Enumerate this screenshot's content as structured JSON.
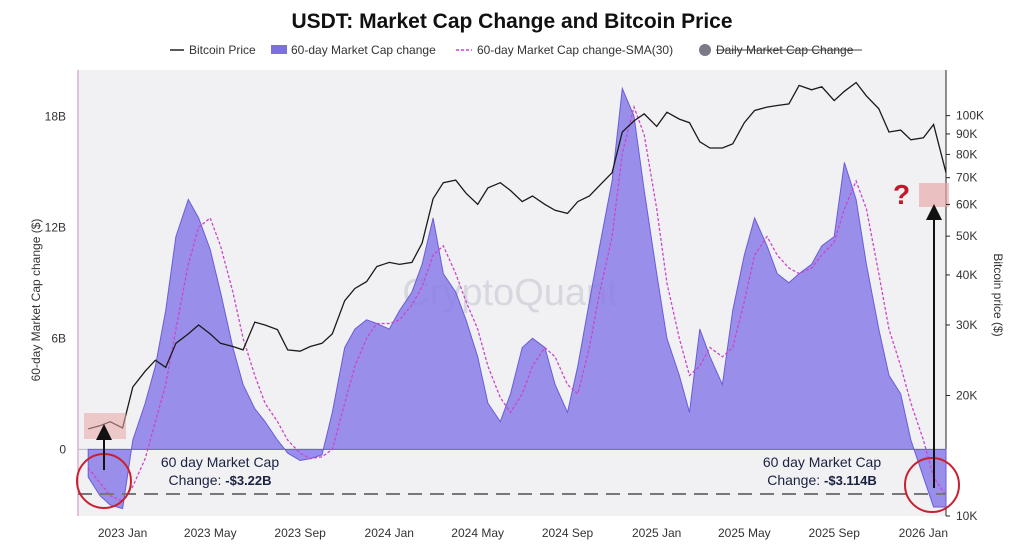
{
  "chart_data": {
    "type": "area",
    "title": "USDT: Market Cap Change and Bitcoin Price",
    "watermark": "CryptoQuant",
    "legend": {
      "placement": "top-center",
      "items": [
        {
          "label": "Bitcoin Price",
          "style": "line",
          "color": "#222222"
        },
        {
          "label": "60-day Market Cap change",
          "style": "area",
          "color": "#7b6ee6"
        },
        {
          "label": "60-day Market Cap change-SMA(30)",
          "style": "dashed",
          "color": "#cc44cc"
        },
        {
          "label": "Daily Market Cap Change",
          "style": "dot-disabled",
          "color": "#7a7a88"
        }
      ]
    },
    "x_ticks": [
      "2023 Jan",
      "2023 May",
      "2023 Sep",
      "2024 Jan",
      "2024 May",
      "2024 Sep",
      "2025 Jan",
      "2025 May",
      "2025 Sep",
      "2026 Jan"
    ],
    "x_range": [
      "2022-11",
      "2026-02"
    ],
    "y_left": {
      "label": "60-day Market Cap change ($)",
      "ticks": [
        "0",
        "6B",
        "12B",
        "18B"
      ],
      "range": [
        -3.6,
        20.5
      ],
      "unit": "B"
    },
    "y_right": {
      "label": "Bitcoin price ($)",
      "scale": "log",
      "ticks": [
        "10K",
        "20K",
        "30K",
        "40K",
        "50K",
        "60K",
        "70K",
        "80K",
        "90K",
        "100K"
      ],
      "range": [
        10000,
        130000
      ]
    },
    "series": [
      {
        "name": "60-day Market Cap change",
        "axis": "left",
        "x": [
          "2022-11-15",
          "2022-12-01",
          "2022-12-15",
          "2023-01-01",
          "2023-01-15",
          "2023-02-01",
          "2023-02-15",
          "2023-03-01",
          "2023-03-15",
          "2023-04-01",
          "2023-04-15",
          "2023-05-01",
          "2023-05-15",
          "2023-06-01",
          "2023-06-15",
          "2023-07-01",
          "2023-07-15",
          "2023-08-01",
          "2023-08-15",
          "2023-09-01",
          "2023-09-15",
          "2023-10-01",
          "2023-10-15",
          "2023-11-01",
          "2023-11-15",
          "2023-12-01",
          "2023-12-15",
          "2024-01-01",
          "2024-01-15",
          "2024-02-01",
          "2024-02-15",
          "2024-03-01",
          "2024-03-15",
          "2024-04-01",
          "2024-04-15",
          "2024-05-01",
          "2024-05-15",
          "2024-06-01",
          "2024-06-15",
          "2024-07-01",
          "2024-07-15",
          "2024-08-01",
          "2024-08-15",
          "2024-09-01",
          "2024-09-15",
          "2024-10-01",
          "2024-10-15",
          "2024-11-01",
          "2024-11-15",
          "2024-12-01",
          "2024-12-15",
          "2025-01-01",
          "2025-01-15",
          "2025-02-01",
          "2025-02-15",
          "2025-03-01",
          "2025-03-15",
          "2025-04-01",
          "2025-04-15",
          "2025-05-01",
          "2025-05-15",
          "2025-06-01",
          "2025-06-15",
          "2025-07-01",
          "2025-07-15",
          "2025-08-01",
          "2025-08-15",
          "2025-09-01",
          "2025-09-15",
          "2025-10-01",
          "2025-10-15",
          "2025-11-01",
          "2025-11-15",
          "2025-12-01",
          "2025-12-15",
          "2026-01-01",
          "2026-01-15",
          "2026-02-01"
        ],
        "values": [
          -1.5,
          -2.5,
          -3.0,
          -3.2,
          0.5,
          2.5,
          4.5,
          7.5,
          11.5,
          13.5,
          12.5,
          10.8,
          8.5,
          5.5,
          3.5,
          2.2,
          1.5,
          0.5,
          -0.2,
          -0.6,
          -0.5,
          -0.3,
          2.0,
          5.5,
          6.5,
          7.0,
          6.8,
          6.5,
          7.5,
          8.5,
          10.0,
          12.5,
          9.5,
          8.5,
          7.0,
          5.0,
          2.5,
          1.5,
          3.0,
          5.5,
          6.0,
          5.5,
          3.5,
          2.0,
          4.5,
          8.0,
          11.0,
          14.5,
          19.5,
          18.0,
          14.0,
          9.5,
          6.0,
          4.0,
          2.0,
          6.5,
          5.0,
          3.5,
          7.5,
          10.5,
          12.5,
          11.0,
          9.5,
          9.0,
          9.5,
          10.0,
          11.0,
          11.5,
          15.5,
          13.5,
          10.0,
          6.5,
          4.0,
          3.0,
          0.5,
          -1.5,
          -3.114,
          -3.114
        ]
      },
      {
        "name": "60-day Market Cap change-SMA(30)",
        "axis": "left",
        "x": [
          "2022-11-15",
          "2022-12-01",
          "2022-12-15",
          "2023-01-01",
          "2023-01-15",
          "2023-02-01",
          "2023-02-15",
          "2023-03-01",
          "2023-03-15",
          "2023-04-01",
          "2023-04-15",
          "2023-05-01",
          "2023-05-15",
          "2023-06-01",
          "2023-06-15",
          "2023-07-01",
          "2023-07-15",
          "2023-08-01",
          "2023-08-15",
          "2023-09-01",
          "2023-09-15",
          "2023-10-01",
          "2023-10-15",
          "2023-11-01",
          "2023-11-15",
          "2023-12-01",
          "2023-12-15",
          "2024-01-01",
          "2024-01-15",
          "2024-02-01",
          "2024-02-15",
          "2024-03-01",
          "2024-03-15",
          "2024-04-01",
          "2024-04-15",
          "2024-05-01",
          "2024-05-15",
          "2024-06-01",
          "2024-06-15",
          "2024-07-01",
          "2024-07-15",
          "2024-08-01",
          "2024-08-15",
          "2024-09-01",
          "2024-09-15",
          "2024-10-01",
          "2024-10-15",
          "2024-11-01",
          "2024-11-15",
          "2024-12-01",
          "2024-12-15",
          "2025-01-01",
          "2025-01-15",
          "2025-02-01",
          "2025-02-15",
          "2025-03-01",
          "2025-03-15",
          "2025-04-01",
          "2025-04-15",
          "2025-05-01",
          "2025-05-15",
          "2025-06-01",
          "2025-06-15",
          "2025-07-01",
          "2025-07-15",
          "2025-08-01",
          "2025-08-15",
          "2025-09-01",
          "2025-09-15",
          "2025-10-01",
          "2025-10-15",
          "2025-11-01",
          "2025-11-15",
          "2025-12-01",
          "2025-12-15",
          "2026-01-01",
          "2026-01-15",
          "2026-02-01"
        ],
        "values": [
          -1.0,
          -1.8,
          -2.5,
          -2.8,
          -2.0,
          -0.5,
          1.5,
          3.5,
          6.5,
          10.0,
          12.0,
          12.5,
          11.0,
          8.5,
          6.0,
          4.0,
          2.5,
          1.5,
          0.5,
          -0.2,
          -0.5,
          -0.4,
          0.0,
          2.5,
          4.5,
          6.0,
          6.8,
          6.8,
          7.0,
          7.8,
          8.8,
          10.5,
          11.0,
          9.5,
          8.0,
          6.5,
          4.5,
          2.8,
          2.0,
          3.0,
          4.5,
          5.5,
          5.0,
          3.5,
          3.0,
          5.5,
          8.5,
          11.5,
          16.0,
          18.5,
          17.0,
          13.0,
          9.0,
          6.0,
          4.0,
          4.5,
          5.5,
          5.0,
          5.5,
          8.0,
          10.5,
          11.5,
          10.5,
          9.8,
          9.5,
          9.8,
          10.5,
          11.2,
          13.0,
          14.5,
          13.0,
          9.5,
          6.5,
          4.5,
          2.5,
          0.5,
          -1.5,
          -2.5
        ]
      },
      {
        "name": "Bitcoin Price",
        "axis": "right",
        "x": [
          "2022-11-15",
          "2022-12-01",
          "2022-12-15",
          "2023-01-01",
          "2023-01-15",
          "2023-02-01",
          "2023-02-15",
          "2023-03-01",
          "2023-03-15",
          "2023-04-01",
          "2023-04-15",
          "2023-05-01",
          "2023-05-15",
          "2023-06-01",
          "2023-06-15",
          "2023-07-01",
          "2023-07-15",
          "2023-08-01",
          "2023-08-15",
          "2023-09-01",
          "2023-09-15",
          "2023-10-01",
          "2023-10-15",
          "2023-11-01",
          "2023-11-15",
          "2023-12-01",
          "2023-12-15",
          "2024-01-01",
          "2024-01-15",
          "2024-02-01",
          "2024-02-15",
          "2024-03-01",
          "2024-03-15",
          "2024-04-01",
          "2024-04-15",
          "2024-05-01",
          "2024-05-15",
          "2024-06-01",
          "2024-06-15",
          "2024-07-01",
          "2024-07-15",
          "2024-08-01",
          "2024-08-15",
          "2024-09-01",
          "2024-09-15",
          "2024-10-01",
          "2024-10-15",
          "2024-11-01",
          "2024-11-15",
          "2024-12-01",
          "2024-12-15",
          "2025-01-01",
          "2025-01-15",
          "2025-02-01",
          "2025-02-15",
          "2025-03-01",
          "2025-03-15",
          "2025-04-01",
          "2025-04-15",
          "2025-05-01",
          "2025-05-15",
          "2025-06-01",
          "2025-06-15",
          "2025-07-01",
          "2025-07-15",
          "2025-08-01",
          "2025-08-15",
          "2025-09-01",
          "2025-09-15",
          "2025-10-01",
          "2025-10-15",
          "2025-11-01",
          "2025-11-15",
          "2025-12-01",
          "2025-12-15",
          "2026-01-01",
          "2026-01-15",
          "2026-02-01"
        ],
        "values": [
          16500,
          16800,
          17200,
          16600,
          21000,
          23000,
          24500,
          23500,
          27000,
          28500,
          30000,
          28500,
          27000,
          26500,
          26000,
          30500,
          30000,
          29200,
          26000,
          25800,
          26500,
          27000,
          28500,
          34500,
          37000,
          38500,
          42000,
          43000,
          42500,
          43000,
          48000,
          62000,
          68000,
          69000,
          64000,
          60000,
          66000,
          68000,
          65000,
          61000,
          63000,
          60000,
          58000,
          57000,
          61000,
          63000,
          67000,
          72000,
          91000,
          97000,
          101000,
          94000,
          102000,
          98000,
          96000,
          86000,
          83000,
          83000,
          85000,
          96000,
          103000,
          105000,
          106000,
          107000,
          119000,
          116000,
          118000,
          109000,
          115000,
          121000,
          112000,
          104000,
          91000,
          92000,
          87000,
          88000,
          95000,
          72000
        ]
      }
    ],
    "annotations": [
      {
        "text": "60 day Market Cap",
        "line2_prefix": "Change: ",
        "line2_value": "-$3.22B"
      },
      {
        "text": "60 day Market Cap",
        "line2_prefix": "Change: ",
        "line2_value": "-$3.114B"
      },
      {
        "text": "?"
      }
    ]
  }
}
